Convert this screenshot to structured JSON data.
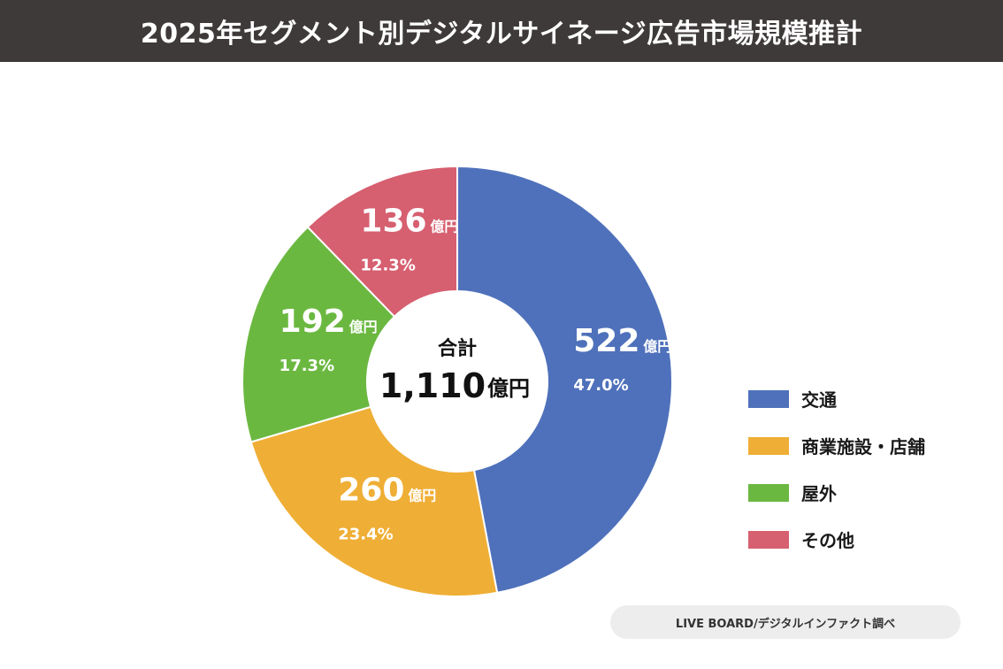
{
  "header": {
    "title": "2025年セグメント別デジタルサイネージ広告市場規模推計"
  },
  "chart_data": {
    "type": "donut",
    "title": "2025年セグメント別デジタルサイネージ広告市場規模推計",
    "unit": "億円",
    "center_label": "合計",
    "total": "1,110",
    "legend_position": "right",
    "slices": [
      {
        "name": "交通",
        "value": 522,
        "percent": "47.0%",
        "color": "#4f71bb"
      },
      {
        "name": "商業施設・店舗",
        "value": 260,
        "percent": "23.4%",
        "color": "#efae35"
      },
      {
        "name": "屋外",
        "value": 192,
        "percent": "17.3%",
        "color": "#6bb841"
      },
      {
        "name": "その他",
        "value": 136,
        "percent": "12.3%",
        "color": "#d65f70"
      }
    ]
  },
  "source": {
    "text": "LIVE BOARD/デジタルインファクト調べ"
  }
}
